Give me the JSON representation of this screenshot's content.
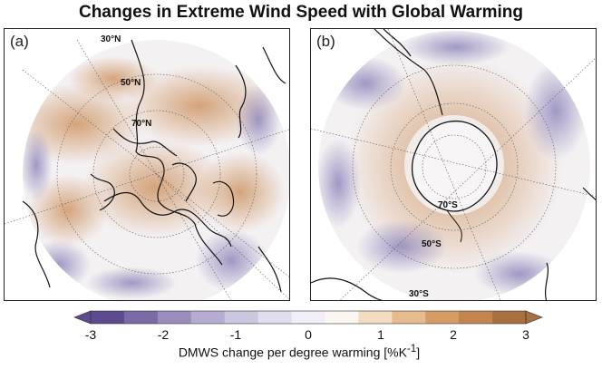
{
  "title": "Changes in Extreme Wind Speed with Global Warming",
  "panels": [
    {
      "label": "(a)",
      "hemisphere": "north",
      "lat_labels": [
        "30°N",
        "50°N",
        "70°N"
      ]
    },
    {
      "label": "(b)",
      "hemisphere": "south",
      "lat_labels": [
        "70°S",
        "50°S",
        "30°S"
      ]
    }
  ],
  "colorbar": {
    "label": "DMWS change per degree warming [%K",
    "label_sup": "-1",
    "label_close": "]",
    "min": -3,
    "max": 3,
    "ticks": [
      "-3",
      "-2",
      "-1",
      "0",
      "1",
      "2",
      "3"
    ],
    "colors": [
      "#5e4a8f",
      "#7a6aa6",
      "#9a8dbd",
      "#b6acd1",
      "#ccc6e0",
      "#e0ddee",
      "#f0eff7",
      "#fbf7f0",
      "#f4dcc0",
      "#e6bb8d",
      "#d59c66",
      "#c4854c",
      "#a9703f"
    ],
    "extend": "both"
  },
  "colors": {
    "positive": "#c98a52",
    "negative": "#7c72b0",
    "neutral": "#f4f1f3",
    "coast": "#111111",
    "grid": "#555555"
  }
}
